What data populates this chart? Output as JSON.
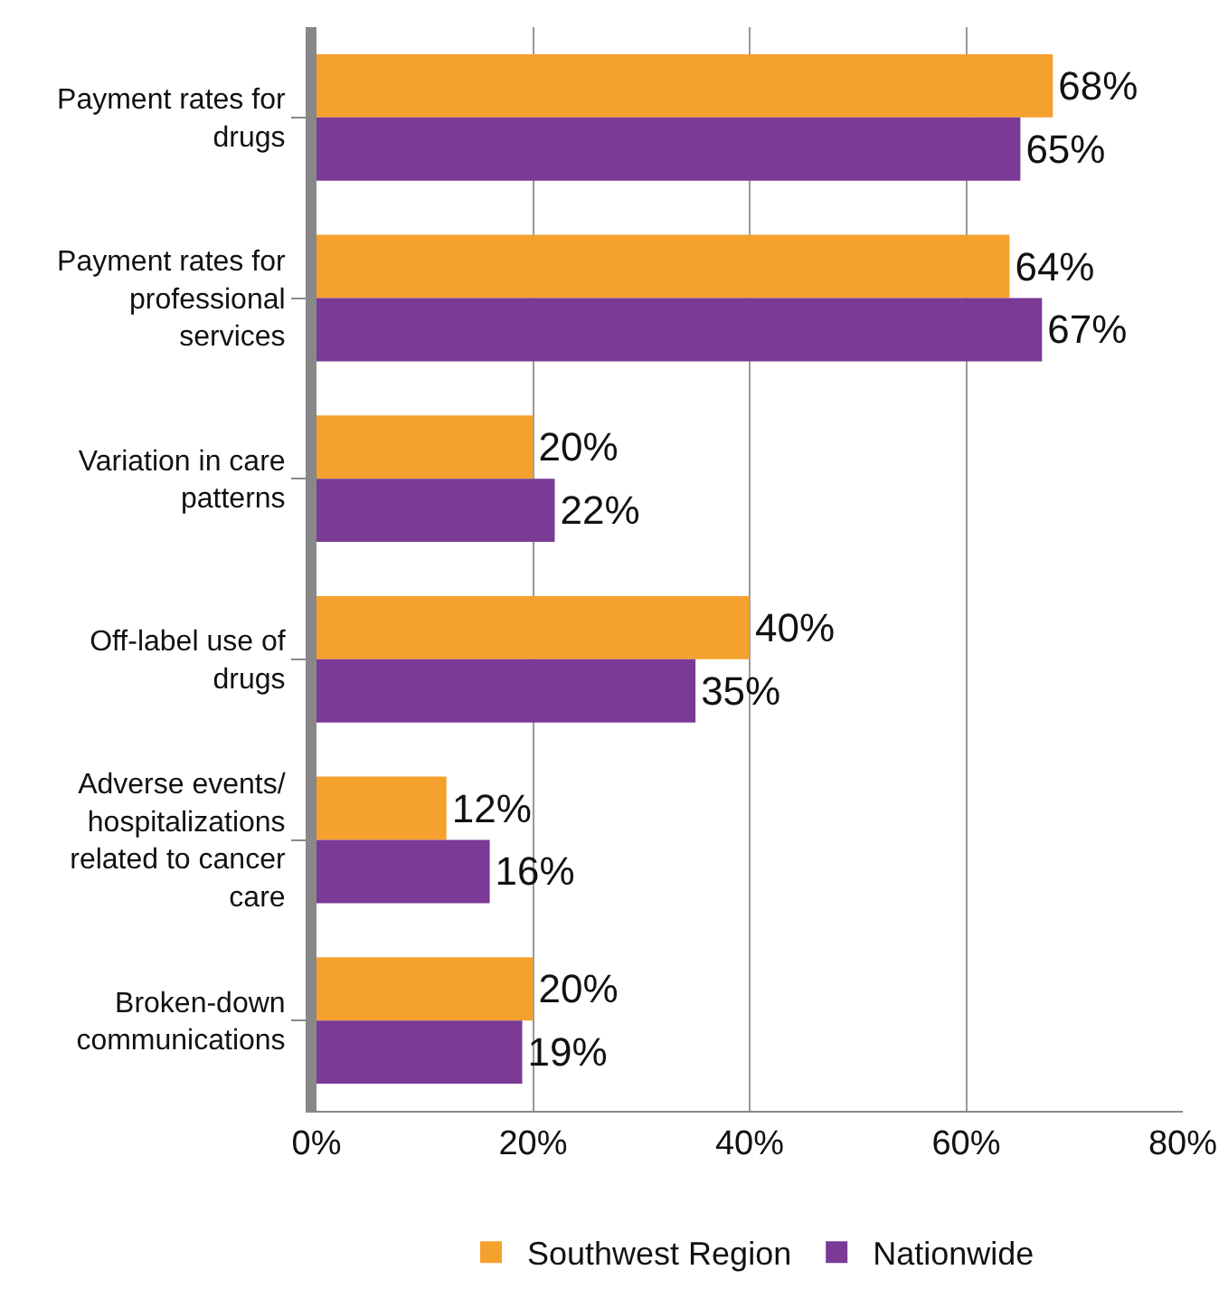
{
  "chart_data": {
    "type": "bar",
    "orientation": "horizontal",
    "categories": [
      "Payment rates for drugs",
      "Payment rates for professional services",
      "Variation in care patterns",
      "Off-label use of drugs",
      "Adverse events/ hospitalizations related to cancer care",
      "Broken-down communications"
    ],
    "series": [
      {
        "name": "Southwest Region",
        "color": "#f4a12e",
        "values": [
          68,
          64,
          20,
          40,
          12,
          20
        ],
        "value_labels": [
          "68%",
          "64%",
          "20%",
          "40%",
          "12%",
          "20%"
        ]
      },
      {
        "name": "Nationwide",
        "color": "#7b3a96",
        "values": [
          65,
          67,
          22,
          35,
          16,
          19
        ],
        "value_labels": [
          "65%",
          "67%",
          "22%",
          "35%",
          "16%",
          "19%"
        ]
      }
    ],
    "xlim": [
      0,
      80
    ],
    "xticks": [
      {
        "value": 0,
        "label": "0%"
      },
      {
        "value": 20,
        "label": "20%"
      },
      {
        "value": 40,
        "label": "40%"
      },
      {
        "value": 60,
        "label": "60%"
      },
      {
        "value": 80,
        "label": "80%"
      }
    ],
    "grid": "x",
    "legend": "bottom"
  }
}
